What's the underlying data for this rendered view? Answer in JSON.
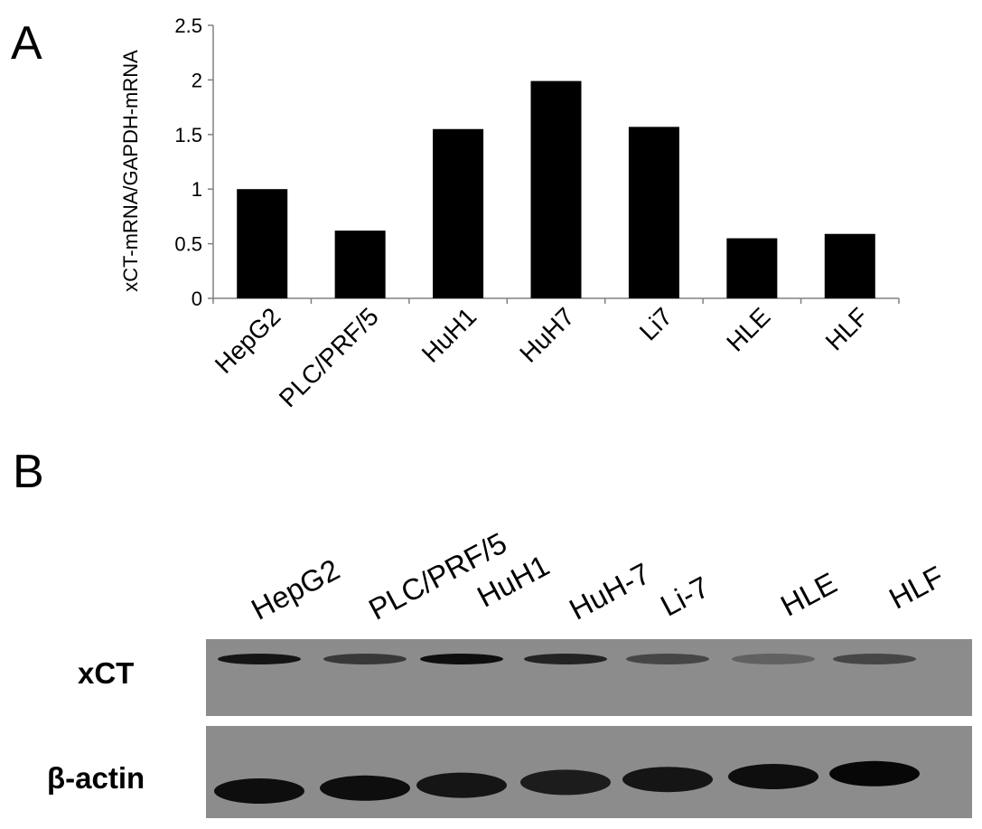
{
  "panel_labels": {
    "a": "A",
    "b": "B"
  },
  "chart_data": {
    "type": "bar",
    "categories": [
      "HepG2",
      "PLC/PRF/5",
      "HuH1",
      "HuH7",
      "Li7",
      "HLE",
      "HLF"
    ],
    "values": [
      1.0,
      0.62,
      1.55,
      1.99,
      1.57,
      0.55,
      0.59
    ],
    "title": "",
    "xlabel": "",
    "ylabel": "xCT-mRNA/GAPDH-mRNA",
    "ylim": [
      0,
      2.5
    ],
    "yticks": [
      "0",
      "0.5",
      "1",
      "1.5",
      "2",
      "2.5"
    ],
    "bar_color": "#000000",
    "grid": false,
    "legend": "none"
  },
  "western_blot": {
    "lanes": [
      "HepG2",
      "PLC/PRF/5",
      "HuH1",
      "HuH-7",
      "Li-7",
      "HLE",
      "HLF"
    ],
    "rows": [
      {
        "label": "xCT",
        "intensities": [
          0.85,
          0.6,
          0.9,
          0.75,
          0.5,
          0.3,
          0.5
        ]
      },
      {
        "label": "β-actin",
        "intensities": [
          0.9,
          0.9,
          0.85,
          0.8,
          0.85,
          0.9,
          0.95
        ]
      }
    ],
    "background_color": "#8c8c8c"
  }
}
